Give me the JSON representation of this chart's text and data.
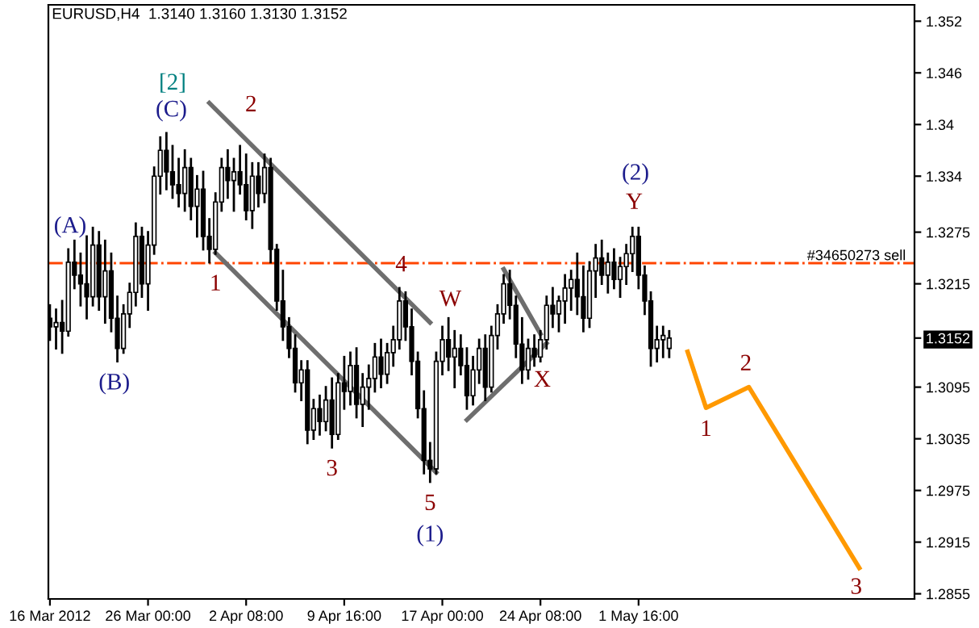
{
  "chart_data": {
    "type": "candlestick",
    "title": "EURUSD,H4  1.3140 1.3160 1.3130 1.3152",
    "categories": [
      "16 Mar 2012",
      null,
      null,
      null,
      null,
      null,
      null,
      null,
      null,
      null,
      null,
      null,
      null,
      null,
      null,
      null,
      "26 Mar 00:00",
      null,
      null,
      null,
      null,
      null,
      null,
      null,
      null,
      null,
      null,
      null,
      null,
      null,
      null,
      null,
      "2 Apr 08:00",
      null,
      null,
      null,
      null,
      null,
      null,
      null,
      null,
      null,
      null,
      null,
      null,
      null,
      null,
      null,
      "9 Apr 16:00",
      null,
      null,
      null,
      null,
      null,
      null,
      null,
      null,
      null,
      null,
      null,
      null,
      null,
      null,
      null,
      "17 Apr 00:00",
      null,
      null,
      null,
      null,
      null,
      null,
      null,
      null,
      null,
      null,
      null,
      null,
      null,
      null,
      null,
      "24 Apr 08:00",
      null,
      null,
      null,
      null,
      null,
      null,
      null,
      null,
      null,
      null,
      null,
      null,
      null,
      null,
      null,
      "1 May 16:00",
      null,
      null,
      null,
      null,
      null,
      null,
      null,
      null,
      null,
      null,
      null,
      null,
      null,
      null,
      null,
      null,
      null,
      null,
      null,
      null,
      null,
      null,
      null,
      null,
      null,
      null,
      null,
      null,
      null,
      null,
      null,
      null,
      null,
      null,
      null,
      null,
      null,
      null,
      null,
      null,
      null,
      null,
      null,
      null,
      null
    ],
    "ohlc": [
      [
        1.3175,
        1.319,
        1.315,
        1.3165
      ],
      [
        1.3165,
        1.3185,
        1.314,
        1.317
      ],
      [
        1.317,
        1.3195,
        1.3135,
        1.316
      ],
      [
        1.316,
        1.3255,
        1.3155,
        1.324
      ],
      [
        1.324,
        1.3265,
        1.321,
        1.3225
      ],
      [
        1.3225,
        1.325,
        1.319,
        1.3215
      ],
      [
        1.3215,
        1.327,
        1.3175,
        1.32
      ],
      [
        1.32,
        1.328,
        1.319,
        1.326
      ],
      [
        1.326,
        1.3275,
        1.3185,
        1.32
      ],
      [
        1.32,
        1.3265,
        1.317,
        1.323
      ],
      [
        1.323,
        1.325,
        1.316,
        1.3175
      ],
      [
        1.3175,
        1.32,
        1.3125,
        1.314
      ],
      [
        1.314,
        1.319,
        1.3135,
        1.318
      ],
      [
        1.318,
        1.3215,
        1.3165,
        1.3205
      ],
      [
        1.3205,
        1.3285,
        1.319,
        1.327
      ],
      [
        1.327,
        1.328,
        1.32,
        1.3215
      ],
      [
        1.3215,
        1.3275,
        1.3185,
        1.326
      ],
      [
        1.326,
        1.335,
        1.325,
        1.334
      ],
      [
        1.334,
        1.3385,
        1.332,
        1.337
      ],
      [
        1.337,
        1.339,
        1.3325,
        1.3345
      ],
      [
        1.3345,
        1.3375,
        1.3315,
        1.333
      ],
      [
        1.333,
        1.336,
        1.3305,
        1.332
      ],
      [
        1.332,
        1.337,
        1.33,
        1.335
      ],
      [
        1.335,
        1.336,
        1.329,
        1.3305
      ],
      [
        1.3305,
        1.334,
        1.327,
        1.3325
      ],
      [
        1.3325,
        1.3345,
        1.3255,
        1.327
      ],
      [
        1.327,
        1.329,
        1.324,
        1.3255
      ],
      [
        1.3255,
        1.332,
        1.325,
        1.331
      ],
      [
        1.331,
        1.336,
        1.33,
        1.335
      ],
      [
        1.335,
        1.337,
        1.3315,
        1.3335
      ],
      [
        1.3335,
        1.336,
        1.33,
        1.3345
      ],
      [
        1.3345,
        1.3375,
        1.332,
        1.333
      ],
      [
        1.333,
        1.3365,
        1.329,
        1.33
      ],
      [
        1.33,
        1.3355,
        1.328,
        1.334
      ],
      [
        1.334,
        1.3355,
        1.3305,
        1.332
      ],
      [
        1.332,
        1.3365,
        1.331,
        1.335
      ],
      [
        1.335,
        1.336,
        1.324,
        1.3255
      ],
      [
        1.3255,
        1.326,
        1.3185,
        1.3195
      ],
      [
        1.3195,
        1.323,
        1.315,
        1.3165
      ],
      [
        1.3165,
        1.3175,
        1.313,
        1.314
      ],
      [
        1.314,
        1.3155,
        1.309,
        1.31
      ],
      [
        1.31,
        1.3125,
        1.308,
        1.3115
      ],
      [
        1.3115,
        1.3125,
        1.303,
        1.3045
      ],
      [
        1.3045,
        1.308,
        1.3035,
        1.307
      ],
      [
        1.307,
        1.3085,
        1.304,
        1.3055
      ],
      [
        1.3055,
        1.3095,
        1.3045,
        1.308
      ],
      [
        1.308,
        1.3105,
        1.3025,
        1.304
      ],
      [
        1.304,
        1.311,
        1.3035,
        1.31
      ],
      [
        1.31,
        1.313,
        1.307,
        1.309
      ],
      [
        1.309,
        1.3135,
        1.3075,
        1.312
      ],
      [
        1.312,
        1.314,
        1.306,
        1.3075
      ],
      [
        1.3075,
        1.311,
        1.305,
        1.3095
      ],
      [
        1.3095,
        1.312,
        1.307,
        1.3105
      ],
      [
        1.3105,
        1.3145,
        1.309,
        1.313
      ],
      [
        1.313,
        1.315,
        1.3095,
        1.311
      ],
      [
        1.311,
        1.3145,
        1.31,
        1.3135
      ],
      [
        1.3135,
        1.3165,
        1.312,
        1.315
      ],
      [
        1.315,
        1.321,
        1.314,
        1.3195
      ],
      [
        1.3195,
        1.3205,
        1.315,
        1.3165
      ],
      [
        1.3165,
        1.3185,
        1.311,
        1.3125
      ],
      [
        1.3125,
        1.3135,
        1.306,
        1.307
      ],
      [
        1.307,
        1.309,
        1.2995,
        1.301
      ],
      [
        1.301,
        1.303,
        1.2985,
        1.3
      ],
      [
        1.3,
        1.3135,
        1.2995,
        1.3125
      ],
      [
        1.3125,
        1.3165,
        1.311,
        1.315
      ],
      [
        1.315,
        1.3175,
        1.3115,
        1.313
      ],
      [
        1.313,
        1.316,
        1.3095,
        1.314
      ],
      [
        1.314,
        1.3155,
        1.311,
        1.312
      ],
      [
        1.312,
        1.314,
        1.307,
        1.3085
      ],
      [
        1.3085,
        1.313,
        1.3075,
        1.3115
      ],
      [
        1.3115,
        1.315,
        1.31,
        1.314
      ],
      [
        1.314,
        1.3155,
        1.308,
        1.3095
      ],
      [
        1.3095,
        1.3165,
        1.309,
        1.3155
      ],
      [
        1.3155,
        1.319,
        1.314,
        1.318
      ],
      [
        1.318,
        1.3225,
        1.317,
        1.3215
      ],
      [
        1.3215,
        1.323,
        1.3175,
        1.319
      ],
      [
        1.319,
        1.32,
        1.313,
        1.3145
      ],
      [
        1.3145,
        1.3175,
        1.31,
        1.3115
      ],
      [
        1.3115,
        1.315,
        1.3105,
        1.314
      ],
      [
        1.314,
        1.3155,
        1.312,
        1.313
      ],
      [
        1.313,
        1.316,
        1.3125,
        1.315
      ],
      [
        1.315,
        1.32,
        1.314,
        1.319
      ],
      [
        1.319,
        1.321,
        1.3165,
        1.318
      ],
      [
        1.318,
        1.32,
        1.316,
        1.3195
      ],
      [
        1.3195,
        1.3225,
        1.317,
        1.321
      ],
      [
        1.321,
        1.323,
        1.3185,
        1.322
      ],
      [
        1.322,
        1.325,
        1.318,
        1.32
      ],
      [
        1.32,
        1.3235,
        1.316,
        1.3175
      ],
      [
        1.3175,
        1.324,
        1.3165,
        1.323
      ],
      [
        1.323,
        1.326,
        1.32,
        1.3245
      ],
      [
        1.3245,
        1.3265,
        1.3215,
        1.3225
      ],
      [
        1.3225,
        1.325,
        1.3205,
        1.324
      ],
      [
        1.324,
        1.3255,
        1.321,
        1.322
      ],
      [
        1.322,
        1.3245,
        1.32,
        1.3235
      ],
      [
        1.3235,
        1.326,
        1.3215,
        1.325
      ],
      [
        1.325,
        1.328,
        1.323,
        1.327
      ],
      [
        1.327,
        1.328,
        1.321,
        1.3225
      ],
      [
        1.3225,
        1.3235,
        1.318,
        1.3195
      ],
      [
        1.3195,
        1.3205,
        1.312,
        1.314
      ],
      [
        1.314,
        1.3165,
        1.3125,
        1.315
      ],
      [
        1.315,
        1.3165,
        1.313,
        1.3155
      ],
      [
        1.314,
        1.316,
        1.313,
        1.3152
      ],
      null,
      null,
      null,
      null,
      null,
      null,
      null,
      null,
      null,
      null,
      null,
      null,
      null,
      null,
      null,
      null,
      null,
      null,
      null,
      null,
      null,
      null,
      null,
      null,
      null,
      null,
      null,
      null,
      null,
      null,
      null,
      null,
      null,
      null,
      null,
      null,
      null,
      null,
      null,
      null
    ],
    "color": "#000000",
    "series": [
      {
        "type": "line",
        "color": "#6e6e6e",
        "values": [
          null,
          null,
          null,
          null,
          null,
          null,
          null,
          null,
          null,
          null,
          null,
          null,
          null,
          null,
          null,
          null,
          null,
          null,
          null,
          null,
          null,
          null,
          null,
          null,
          null,
          null,
          1.3425,
          null,
          null,
          null,
          null,
          null,
          null,
          null,
          null,
          null,
          null,
          null,
          null,
          null,
          null,
          null,
          null,
          null,
          null,
          null,
          null,
          null,
          null,
          null,
          null,
          null,
          null,
          null,
          null,
          null,
          null,
          null,
          null,
          null,
          null,
          null,
          1.317,
          null,
          null,
          null,
          null,
          null,
          null,
          null,
          null,
          null,
          null,
          null,
          null,
          null,
          null,
          null,
          null,
          null,
          null,
          null,
          null,
          null,
          null,
          null,
          null,
          null,
          null,
          null,
          null,
          null,
          null,
          null,
          null,
          null,
          null,
          null,
          null,
          null,
          null,
          null,
          null,
          null,
          null,
          null,
          null,
          null,
          null,
          null,
          null,
          null,
          null,
          null,
          null,
          null,
          null,
          null,
          null,
          null,
          null,
          null,
          null,
          null,
          null,
          null,
          null,
          null,
          null,
          null,
          null,
          null,
          null,
          null,
          null,
          null,
          null,
          null,
          null,
          null,
          null,
          null
        ]
      },
      {
        "type": "line",
        "color": "#6e6e6e",
        "values": [
          null,
          null,
          null,
          null,
          null,
          null,
          null,
          null,
          null,
          null,
          null,
          null,
          null,
          null,
          null,
          null,
          null,
          null,
          null,
          null,
          null,
          null,
          null,
          null,
          null,
          null,
          null,
          1.3251,
          null,
          null,
          null,
          null,
          null,
          null,
          null,
          null,
          null,
          null,
          null,
          null,
          null,
          null,
          null,
          null,
          null,
          null,
          null,
          null,
          null,
          null,
          null,
          null,
          null,
          null,
          null,
          null,
          null,
          null,
          null,
          null,
          null,
          null,
          null,
          1.2996,
          null,
          null,
          null,
          null,
          null,
          null,
          null,
          null,
          null,
          null,
          null,
          null,
          null,
          null,
          null,
          null,
          null,
          null,
          null,
          null,
          null,
          null,
          null,
          null,
          null,
          null,
          null,
          null,
          null,
          null,
          null,
          null,
          null,
          null,
          null,
          null,
          null,
          null,
          null,
          null,
          null,
          null,
          null,
          null,
          null,
          null,
          null,
          null,
          null,
          null,
          null,
          null,
          null,
          null,
          null,
          null,
          null,
          null,
          null,
          null,
          null,
          null,
          null,
          null,
          null,
          null,
          null,
          null,
          null,
          null,
          null,
          null,
          null,
          null,
          null,
          null,
          null,
          null
        ]
      },
      {
        "type": "line",
        "color": "#6e6e6e",
        "values": [
          null,
          null,
          null,
          null,
          null,
          null,
          null,
          null,
          null,
          null,
          null,
          null,
          null,
          null,
          null,
          null,
          null,
          null,
          null,
          null,
          null,
          null,
          null,
          null,
          null,
          null,
          null,
          null,
          null,
          null,
          null,
          null,
          null,
          null,
          null,
          null,
          null,
          null,
          null,
          null,
          null,
          null,
          null,
          null,
          null,
          null,
          null,
          null,
          null,
          null,
          null,
          null,
          null,
          null,
          null,
          null,
          null,
          null,
          null,
          null,
          null,
          null,
          null,
          null,
          null,
          null,
          null,
          null,
          1.3057,
          null,
          null,
          null,
          null,
          null,
          null,
          null,
          null,
          null,
          null,
          null,
          null,
          1.3146,
          null,
          null,
          null,
          null,
          null,
          null,
          null,
          null,
          null,
          null,
          null,
          null,
          null,
          null,
          null,
          null,
          null,
          null,
          null,
          null,
          null,
          null,
          null,
          null,
          null,
          null,
          null,
          null,
          null,
          null,
          null,
          null,
          null,
          null,
          null,
          null,
          null,
          null,
          null,
          null,
          null,
          null,
          null,
          null,
          null,
          null,
          null,
          null,
          null,
          null,
          null,
          null,
          null,
          null,
          null,
          null,
          null,
          null,
          null,
          null
        ]
      },
      {
        "type": "line",
        "color": "#6e6e6e",
        "values": [
          null,
          null,
          null,
          null,
          null,
          null,
          null,
          null,
          null,
          null,
          null,
          null,
          null,
          null,
          null,
          null,
          null,
          null,
          null,
          null,
          null,
          null,
          null,
          null,
          null,
          null,
          null,
          null,
          null,
          null,
          null,
          null,
          null,
          null,
          null,
          null,
          null,
          null,
          null,
          null,
          null,
          null,
          null,
          null,
          null,
          null,
          null,
          null,
          null,
          null,
          null,
          null,
          null,
          null,
          null,
          null,
          null,
          null,
          null,
          null,
          null,
          null,
          null,
          null,
          null,
          null,
          null,
          null,
          null,
          null,
          null,
          null,
          null,
          null,
          1.3232,
          null,
          null,
          null,
          null,
          null,
          1.3157,
          null,
          null,
          null,
          null,
          null,
          null,
          null,
          null,
          null,
          null,
          null,
          null,
          null,
          null,
          null,
          null,
          null,
          null,
          null,
          null,
          null,
          null,
          null,
          null,
          null,
          null,
          null,
          null,
          null,
          null,
          null,
          null,
          null,
          null,
          null,
          null,
          null,
          null,
          null,
          null,
          null,
          null,
          null,
          null,
          null,
          null,
          null,
          null,
          null,
          null,
          null,
          null,
          null,
          null,
          null,
          null,
          null,
          null,
          null,
          null,
          null
        ]
      },
      {
        "type": "line",
        "color": "#ff9900",
        "values": [
          null,
          null,
          null,
          null,
          null,
          null,
          null,
          null,
          null,
          null,
          null,
          null,
          null,
          null,
          null,
          null,
          null,
          null,
          null,
          null,
          null,
          null,
          null,
          null,
          null,
          null,
          null,
          null,
          null,
          null,
          null,
          null,
          null,
          null,
          null,
          null,
          null,
          null,
          null,
          null,
          null,
          null,
          null,
          null,
          null,
          null,
          null,
          null,
          null,
          null,
          null,
          null,
          null,
          null,
          null,
          null,
          null,
          null,
          null,
          null,
          null,
          null,
          null,
          null,
          null,
          null,
          null,
          null,
          null,
          null,
          null,
          null,
          null,
          null,
          null,
          null,
          null,
          null,
          null,
          null,
          null,
          null,
          null,
          null,
          null,
          null,
          null,
          null,
          null,
          null,
          null,
          null,
          null,
          null,
          null,
          null,
          null,
          null,
          null,
          null,
          null,
          null,
          null,
          null,
          1.3136,
          null,
          null,
          1.3071,
          null,
          null,
          null,
          null,
          null,
          null,
          1.3095,
          null,
          null,
          null,
          null,
          null,
          null,
          null,
          null,
          null,
          null,
          null,
          null,
          null,
          null,
          null,
          null,
          null,
          1.2885,
          null,
          null,
          null,
          null,
          null,
          null,
          null,
          null,
          null
        ]
      }
    ],
    "ref_lines": [
      {
        "axis": "y",
        "value": 1.3239,
        "label": "#34650273 sell",
        "color": "#ff4500",
        "line_style": "dashdot"
      }
    ],
    "ylim": [
      1.2849,
      1.3539
    ],
    "yticks": [
      1.352,
      1.346,
      1.34,
      1.334,
      1.3275,
      1.3215,
      1.3152,
      1.3095,
      1.3035,
      1.2975,
      1.2915,
      1.2855
    ],
    "grid": false,
    "annotations": [
      "[2]",
      {
        "text": "(C)",
        "y": 1.339
      },
      {
        "text": "(A)",
        "y": 1.3255
      },
      {
        "text": "(B)",
        "y": 1.3125
      },
      {
        "text": "2",
        "y": 1.3375
      },
      {
        "text": "1",
        "y": 1.324
      },
      {
        "text": "3",
        "y": 1.3025
      },
      {
        "text": "4",
        "y": 1.321
      },
      {
        "text": "5",
        "y": 1.2985
      },
      {
        "text": "(1)",
        "y": 1.2985
      },
      {
        "text": "W",
        "y": 1.3175
      },
      "X",
      {
        "text": "(2)",
        "y": 1.328
      },
      {
        "text": "Y",
        "y": 1.328
      },
      {
        "text": "1",
        "y": 1.3071
      },
      {
        "text": "2",
        "y": 1.3095
      },
      {
        "text": "3",
        "y": 1.2885
      }
    ]
  }
}
